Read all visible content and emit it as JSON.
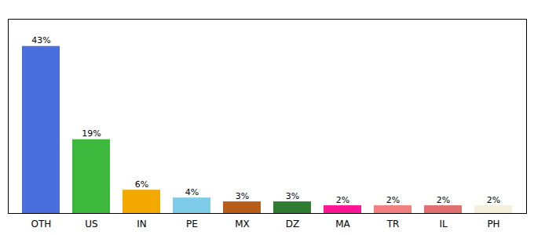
{
  "chart_data": {
    "type": "bar",
    "categories": [
      "OTH",
      "US",
      "IN",
      "PE",
      "MX",
      "DZ",
      "MA",
      "TR",
      "IL",
      "PH"
    ],
    "values": [
      43,
      19,
      6,
      4,
      3,
      3,
      2,
      2,
      2,
      2
    ],
    "value_labels": [
      "43%",
      "19%",
      "6%",
      "4%",
      "3%",
      "3%",
      "2%",
      "2%",
      "2%",
      "2%"
    ],
    "colors": [
      "#4a6fdc",
      "#3cb83c",
      "#f5a800",
      "#7ecce8",
      "#b85c1a",
      "#2e7d32",
      "#ff1493",
      "#f08080",
      "#e07070",
      "#f5f0dc"
    ],
    "ylim": [
      0,
      50
    ],
    "grid": false,
    "data_labels": true,
    "tick_labels": "x"
  }
}
